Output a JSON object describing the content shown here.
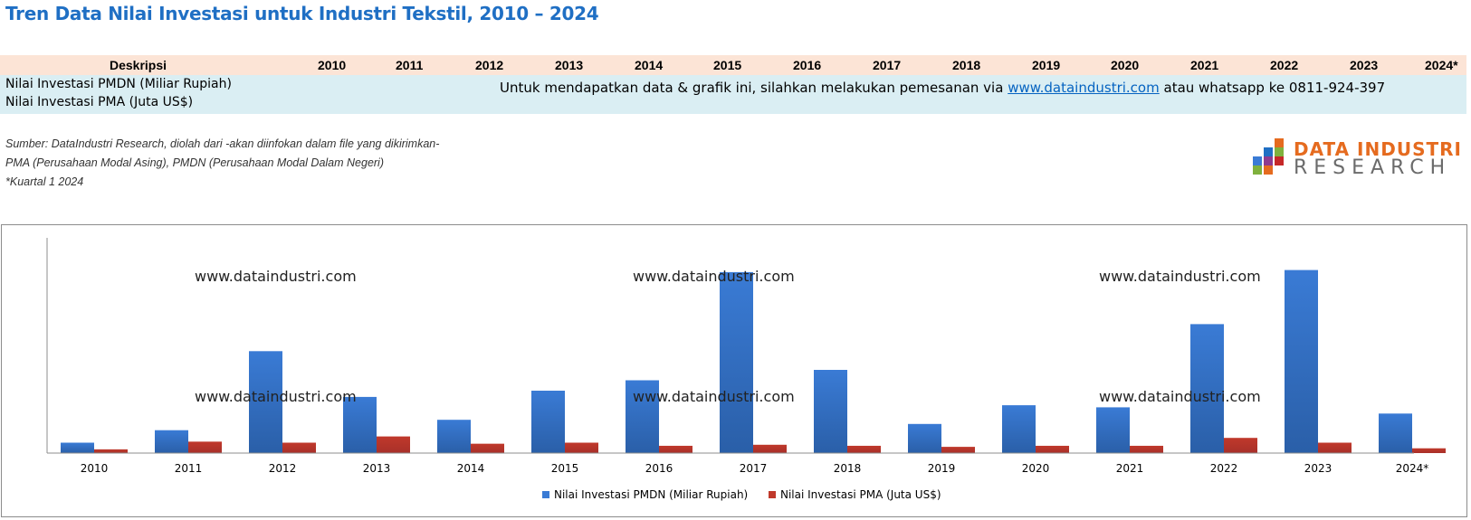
{
  "title": "Tren Data Nilai Investasi untuk Industri Tekstil, 2010 – 2024",
  "table": {
    "header_label": "Deskripsi",
    "years": [
      "2010",
      "2011",
      "2012",
      "2013",
      "2014",
      "2015",
      "2016",
      "2017",
      "2018",
      "2019",
      "2020",
      "2021",
      "2022",
      "2023",
      "2024*"
    ],
    "rows": [
      "Nilai Investasi PMDN (Miliar Rupiah)",
      "Nilai Investasi PMA (Juta US$)"
    ],
    "notice_prefix": "Untuk mendapatkan data & grafik ini, silahkan melakukan pemesanan via ",
    "notice_link": "www.dataindustri.com",
    "notice_suffix": " atau whatsapp ke 0811-924-397"
  },
  "source": {
    "line1": "Sumber: DataIndustri Research, diolah dari -akan diinfokan dalam file yang dikirimkan-",
    "line2": "PMA (Perusahaan Modal Asing), PMDN (Perusahaan Modal Dalam Negeri)",
    "line3": "*Kuartal  1 2024"
  },
  "logo": {
    "line1": "DATA INDUSTRI",
    "line2": "RESEARCH",
    "colors": [
      "#e56b1f",
      "#1f6fc4",
      "#7fb13d",
      "#8e3b8f",
      "#c62828"
    ]
  },
  "watermark": "www.dataindustri.com",
  "chart_data": {
    "type": "bar",
    "categories": [
      "2010",
      "2011",
      "2012",
      "2013",
      "2014",
      "2015",
      "2016",
      "2017",
      "2018",
      "2019",
      "2020",
      "2021",
      "2022",
      "2023",
      "2024*"
    ],
    "series": [
      {
        "name": "Nilai Investasi PMDN (Miliar Rupiah)",
        "color": "#3a7bd5",
        "values": [
          5,
          11,
          49,
          27,
          16,
          30,
          35,
          87,
          40,
          14,
          23,
          22,
          62,
          88,
          19
        ]
      },
      {
        "name": "Nilai Investasi PMA (Juta US$)",
        "color": "#c0392b",
        "values": [
          1.8,
          5.5,
          5,
          8,
          4.5,
          5,
          3.5,
          4,
          3.5,
          3,
          3.5,
          3.5,
          7.3,
          5,
          2.3
        ]
      }
    ],
    "ylim": [
      0,
      100
    ],
    "grid": false,
    "legend": "bottom"
  }
}
